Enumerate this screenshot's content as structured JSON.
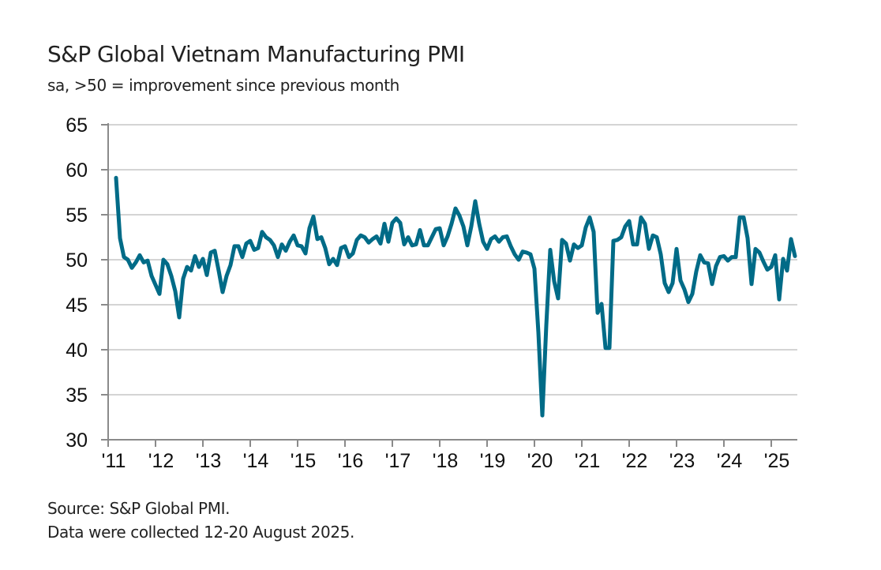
{
  "chart_data": {
    "type": "line",
    "title": "S&P Global Vietnam Manufacturing PMI",
    "subtitle": "sa, >50 = improvement since previous month",
    "xlabel": "",
    "ylabel": "",
    "ylim": [
      30,
      65
    ],
    "yticks": [
      30,
      35,
      40,
      45,
      50,
      55,
      60,
      65
    ],
    "ytick_labels": [
      "30",
      "35",
      "40",
      "45",
      "50",
      "55",
      "60",
      "65"
    ],
    "xticks": [
      "'11",
      "'12",
      "'13",
      "'14",
      "'15",
      "'16",
      "'17",
      "'18",
      "'19",
      "'20",
      "'21",
      "'22",
      "'23",
      "'24",
      "'25"
    ],
    "x_start": "2011-03",
    "x_end": "2025-08",
    "grid": "horizontal",
    "legend": "none",
    "series": [
      {
        "name": "Vietnam Manufacturing PMI",
        "color": "#006B87",
        "values": [
          59.1,
          52.4,
          50.3,
          50.0,
          49.1,
          49.7,
          50.5,
          49.7,
          49.9,
          48.2,
          47.2,
          46.2,
          50.0,
          49.5,
          48.2,
          46.5,
          43.6,
          47.9,
          49.2,
          48.8,
          50.4,
          49.2,
          50.1,
          48.3,
          50.8,
          51.0,
          48.8,
          46.4,
          48.2,
          49.4,
          51.5,
          51.5,
          50.3,
          51.8,
          52.1,
          51.1,
          51.3,
          53.1,
          52.5,
          52.2,
          51.6,
          50.3,
          51.7,
          51.0,
          52.0,
          52.7,
          51.6,
          51.5,
          50.7,
          53.5,
          54.8,
          52.3,
          52.5,
          51.3,
          49.5,
          50.1,
          49.4,
          51.3,
          51.5,
          50.3,
          50.7,
          52.2,
          52.7,
          52.5,
          51.9,
          52.3,
          52.6,
          51.8,
          54.0,
          52.0,
          54.1,
          54.6,
          54.1,
          51.7,
          52.5,
          51.6,
          51.7,
          53.3,
          51.6,
          51.6,
          52.5,
          53.4,
          53.5,
          51.6,
          52.6,
          54.0,
          55.7,
          54.9,
          53.7,
          51.6,
          53.7,
          56.5,
          54.0,
          52.0,
          51.2,
          52.3,
          52.6,
          52.0,
          52.5,
          52.6,
          51.5,
          50.6,
          50.0,
          50.9,
          50.8,
          50.6,
          49.0,
          41.9,
          32.7,
          42.7,
          51.1,
          47.6,
          45.7,
          52.2,
          51.8,
          49.9,
          51.7,
          51.3,
          51.6,
          53.6,
          54.7,
          53.1,
          44.1,
          45.1,
          40.2,
          40.2,
          52.1,
          52.2,
          52.5,
          53.7,
          54.3,
          51.7,
          51.7,
          54.7,
          54.0,
          51.2,
          52.7,
          52.5,
          50.6,
          47.4,
          46.4,
          47.4,
          51.2,
          47.7,
          46.7,
          45.3,
          46.2,
          48.7,
          50.5,
          49.7,
          49.6,
          47.3,
          49.3,
          50.3,
          50.4,
          49.9,
          50.3,
          50.3,
          54.7,
          54.7,
          52.4,
          47.3,
          51.2,
          50.8,
          49.8,
          48.9,
          49.2,
          50.5,
          45.6,
          50.1,
          48.8,
          52.3,
          50.4
        ]
      }
    ]
  },
  "footer": {
    "source": "Source: S&P Global PMI.",
    "note": "Data were collected 12-20 August 2025."
  }
}
